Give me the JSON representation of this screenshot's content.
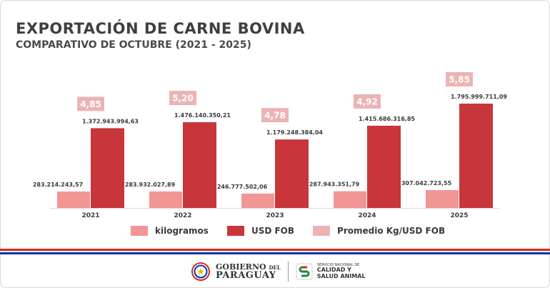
{
  "header": {
    "title": "EXPORTACIÓN DE CARNE BOVINA",
    "subtitle": "COMPARATIVO DE OCTUBRE (2021 - 2025)"
  },
  "chart_data": {
    "type": "bar",
    "categories": [
      "2021",
      "2022",
      "2023",
      "2024",
      "2025"
    ],
    "series": [
      {
        "name": "kilogramos",
        "color": "#f29595",
        "values": [
          283214243.57,
          283932027.89,
          246777502.06,
          287943351.79,
          307042723.55
        ],
        "labels": [
          "283.214.243,57",
          "283.932.027,89",
          "246.777.502,06",
          "287.943.351,79",
          "307.042.723,55"
        ]
      },
      {
        "name": "USD FOB",
        "color": "#c8363b",
        "values": [
          1372943994.63,
          1476140350.21,
          1179248384.04,
          1415686316.85,
          1795999711.09
        ],
        "labels": [
          "1.372.943.994,63",
          "1.476.140.350,21",
          "1.179.248.384,04",
          "1.415.686.316,85",
          "1.795.999.711,09"
        ]
      },
      {
        "name": "Promedio Kg/USD FOB",
        "color": "#ecb3b4",
        "values": [
          4.85,
          5.2,
          4.78,
          4.92,
          5.85
        ],
        "labels": [
          "4,85",
          "5,20",
          "4,78",
          "4,92",
          "5,85"
        ]
      }
    ]
  },
  "footer": {
    "gov_line1": "GOBIERNO",
    "gov_del": "DEL",
    "gov_line2": "PARAGUAY",
    "senacsa_line1": "SERVICIO NACIONAL DE",
    "senacsa_line2": "CALIDAD Y",
    "senacsa_line3": "SALUD ANIMAL"
  },
  "colors": {
    "stripe_red": "#d52b1e",
    "stripe_blue": "#0038a8"
  }
}
